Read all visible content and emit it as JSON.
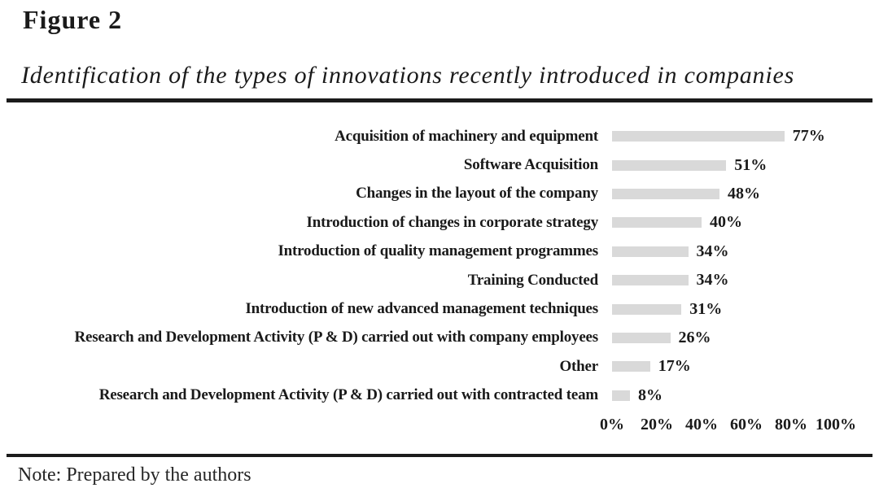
{
  "figure": {
    "label": "Figure 2",
    "title": "Identification of the types of innovations recently introduced in companies",
    "note": "Note: Prepared by the authors"
  },
  "colors": {
    "bar": "#d9d9d9",
    "rule": "#1b1b1b",
    "text": "#1a1a1a"
  },
  "chart_data": {
    "type": "bar",
    "orientation": "horizontal",
    "title": "Identification of the types of innovations recently introduced in companies",
    "xlabel": "",
    "ylabel": "",
    "xlim": [
      0,
      100
    ],
    "grid": false,
    "legend": false,
    "bar_color": "#d9d9d9",
    "categories": [
      "Acquisition of machinery and equipment",
      "Software Acquisition",
      "Changes in the layout of the company",
      "Introduction of changes in corporate strategy",
      "Introduction of quality management programmes",
      "Training Conducted",
      "Introduction of new advanced management techniques",
      "Research and Development Activity (P & D) carried out with company employees",
      "Other",
      "Research and Development Activity (P & D) carried out with contracted team"
    ],
    "values": [
      77,
      51,
      48,
      40,
      34,
      34,
      31,
      26,
      17,
      8
    ],
    "value_labels": [
      "77%",
      "51%",
      "48%",
      "40%",
      "34%",
      "34%",
      "31%",
      "26%",
      "17%",
      "8%"
    ],
    "x_tick_values": [
      0,
      20,
      40,
      60,
      80,
      100
    ],
    "x_tick_labels": [
      "0%",
      "20%",
      "40%",
      "60%",
      "80%",
      "100%"
    ]
  }
}
